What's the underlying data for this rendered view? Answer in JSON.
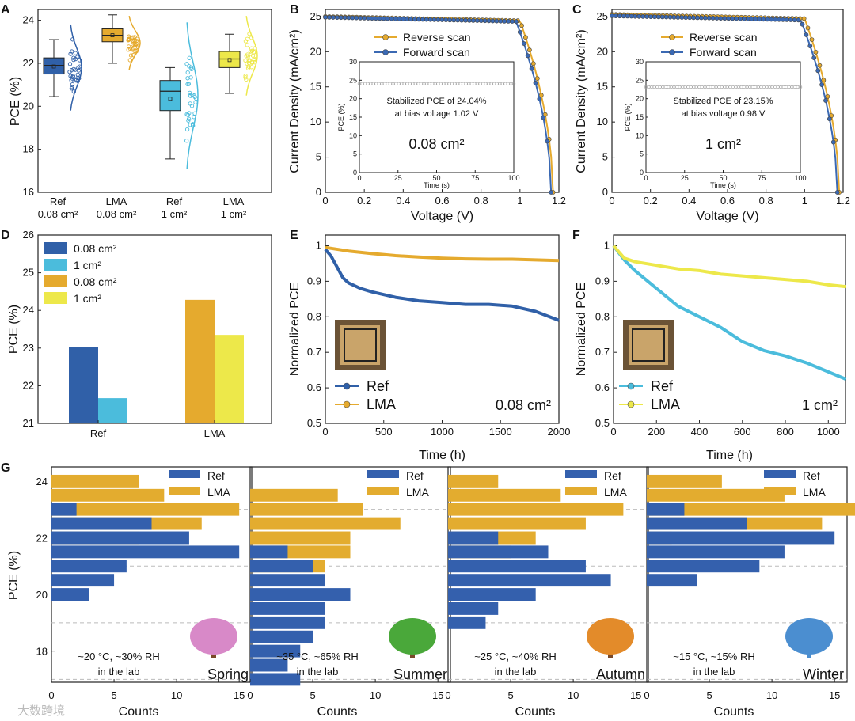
{
  "watermark": "大数跨境",
  "colors": {
    "ref_008": "#3060a8",
    "ref_1": "#4bbcdc",
    "lma_008": "#e5aa2e",
    "lma_1": "#ede84a",
    "reverse": "#e5aa2e",
    "forward": "#3b69b3",
    "stab": "#a9a9a9",
    "g_ref": "#3460ad",
    "g_lma": "#e3ac2f",
    "dash": "#bbbbbb"
  },
  "chart_data": [
    {
      "panel": "A",
      "type": "box",
      "ylabel": "PCE (%)",
      "ylim": [
        16,
        24.5
      ],
      "yticks": [
        16,
        18,
        20,
        22,
        24
      ],
      "categories": [
        {
          "line1": "Ref",
          "line2": "0.08 cm²",
          "color_key": "ref_008",
          "min": 20.45,
          "q1": 21.5,
          "median": 21.9,
          "q3": 22.25,
          "max": 23.1,
          "mean": 21.85,
          "pts_min": 19.8,
          "pts_max": 23.8
        },
        {
          "line1": "LMA",
          "line2": "0.08 cm²",
          "color_key": "lma_008",
          "min": 22.0,
          "q1": 23.0,
          "median": 23.3,
          "q3": 23.6,
          "max": 24.25,
          "mean": 23.3,
          "pts_min": 21.7,
          "pts_max": 24.2
        },
        {
          "line1": "Ref",
          "line2": "1 cm²",
          "color_key": "ref_1",
          "min": 17.55,
          "q1": 19.8,
          "median": 20.7,
          "q3": 21.2,
          "max": 21.8,
          "mean": 20.35,
          "pts_min": 17.1,
          "pts_max": 23.9
        },
        {
          "line1": "LMA",
          "line2": "1 cm²",
          "color_key": "lma_1",
          "min": 20.6,
          "q1": 21.8,
          "median": 22.2,
          "q3": 22.55,
          "max": 23.35,
          "mean": 22.15,
          "pts_min": 20.5,
          "pts_max": 24.2
        }
      ]
    },
    {
      "panel": "B",
      "type": "line",
      "xlabel": "Voltage (V)",
      "ylabel": "Current Density (mA/cm²)",
      "xlim": [
        0,
        1.2
      ],
      "ylim": [
        0,
        26
      ],
      "xticks": [
        "0",
        "0.2",
        "0.4",
        "0.6",
        "0.8",
        "1",
        "1.2"
      ],
      "yticks": [
        "0",
        "5",
        "10",
        "15",
        "20",
        "25"
      ],
      "series": [
        {
          "name": "Reverse scan",
          "jsc": 25.0,
          "voc": 1.17,
          "knee": 1.0
        },
        {
          "name": "Forward scan",
          "jsc": 24.9,
          "voc": 1.16,
          "knee": 0.98
        }
      ],
      "inset": {
        "ylabel": "PCE (%)",
        "xlabel": "Time (s)",
        "xticks": [
          "0",
          "25",
          "50",
          "75",
          "100"
        ],
        "yticks": [
          "0",
          "5",
          "10",
          "15",
          "20",
          "25",
          "30"
        ],
        "value": 24.04,
        "note1": "Stabilized PCE of 24.04%",
        "note2": "at bias voltage 1.02 V",
        "area": "0.08 cm²"
      }
    },
    {
      "panel": "C",
      "type": "line",
      "xlabel": "Voltage (V)",
      "ylabel": "Current Density (mA/cm²)",
      "xlim": [
        0,
        1.2
      ],
      "ylim": [
        0,
        26
      ],
      "xticks": [
        "0",
        "0.2",
        "0.4",
        "0.6",
        "0.8",
        "1",
        "1.2"
      ],
      "yticks": [
        "0",
        "5",
        "10",
        "15",
        "20",
        "25"
      ],
      "series": [
        {
          "name": "Reverse scan",
          "jsc": 25.3,
          "voc": 1.18,
          "knee": 1.0
        },
        {
          "name": "Forward scan",
          "jsc": 25.1,
          "voc": 1.17,
          "knee": 0.98
        }
      ],
      "inset": {
        "ylabel": "PCE (%)",
        "xlabel": "Time (s)",
        "xticks": [
          "0",
          "25",
          "50",
          "75",
          "100"
        ],
        "yticks": [
          "0",
          "5",
          "10",
          "15",
          "20",
          "25",
          "30"
        ],
        "value": 23.15,
        "note1": "Stabilized PCE of 23.15%",
        "note2": "at bias voltage 0.98 V",
        "area": "1 cm²"
      }
    },
    {
      "panel": "D",
      "type": "bar",
      "ylabel": "PCE (%)",
      "ylim": [
        21,
        26
      ],
      "yticks": [
        "21",
        "22",
        "23",
        "24",
        "25",
        "26"
      ],
      "categories": [
        "Ref",
        "LMA"
      ],
      "series": [
        {
          "name": "0.08 cm²",
          "values": [
            23.02,
            null
          ],
          "color_key": "ref_008"
        },
        {
          "name": "1 cm²",
          "values": [
            21.67,
            null
          ],
          "color_key": "ref_1"
        },
        {
          "name": "0.08 cm²",
          "values": [
            null,
            24.28
          ],
          "color_key": "lma_008"
        },
        {
          "name": "1 cm²",
          "values": [
            null,
            23.35
          ],
          "color_key": "lma_1"
        }
      ]
    },
    {
      "panel": "E",
      "type": "line",
      "xlabel": "Time (h)",
      "ylabel": "Normalized PCE",
      "xlim": [
        0,
        2000
      ],
      "ylim": [
        0.5,
        1.03
      ],
      "xticks": [
        "0",
        "500",
        "1000",
        "1500",
        "2000"
      ],
      "yticks": [
        "0.5",
        "0.6",
        "0.7",
        "0.8",
        "0.9",
        "1"
      ],
      "note": "0.08 cm²",
      "series": [
        {
          "name": "Ref",
          "x": [
            0,
            50,
            100,
            150,
            200,
            300,
            400,
            600,
            800,
            1000,
            1200,
            1400,
            1600,
            1800,
            2000
          ],
          "y": [
            0.99,
            0.97,
            0.94,
            0.91,
            0.895,
            0.88,
            0.87,
            0.855,
            0.845,
            0.84,
            0.835,
            0.835,
            0.83,
            0.815,
            0.79
          ],
          "color_key": "ref_008"
        },
        {
          "name": "LMA",
          "x": [
            0,
            200,
            400,
            600,
            800,
            1000,
            1200,
            1400,
            1600,
            1800,
            2000
          ],
          "y": [
            0.995,
            0.985,
            0.978,
            0.972,
            0.968,
            0.965,
            0.963,
            0.962,
            0.962,
            0.96,
            0.958
          ],
          "color_key": "lma_008"
        }
      ]
    },
    {
      "panel": "F",
      "type": "line",
      "xlabel": "Time (h)",
      "ylabel": "Normalized PCE",
      "xlim": [
        0,
        1080
      ],
      "ylim": [
        0.5,
        1.03
      ],
      "xticks": [
        "0",
        "200",
        "400",
        "600",
        "800",
        "1000"
      ],
      "yticks": [
        "0.5",
        "0.6",
        "0.7",
        "0.8",
        "0.9",
        "1"
      ],
      "note": "1 cm²",
      "series": [
        {
          "name": "Ref",
          "x": [
            0,
            50,
            100,
            200,
            300,
            400,
            500,
            600,
            700,
            800,
            900,
            1000,
            1080
          ],
          "y": [
            1.0,
            0.96,
            0.93,
            0.88,
            0.83,
            0.8,
            0.77,
            0.73,
            0.705,
            0.69,
            0.67,
            0.645,
            0.625
          ],
          "color_key": "ref_1"
        },
        {
          "name": "LMA",
          "x": [
            0,
            50,
            100,
            200,
            300,
            400,
            500,
            600,
            700,
            800,
            900,
            1000,
            1080
          ],
          "y": [
            1.0,
            0.965,
            0.955,
            0.945,
            0.935,
            0.93,
            0.92,
            0.915,
            0.91,
            0.905,
            0.9,
            0.89,
            0.885
          ],
          "color_key": "lma_1"
        }
      ]
    },
    {
      "panel": "G",
      "type": "bar",
      "orientation": "horizontal",
      "ylabel": "PCE (%)",
      "ylim": [
        16.9,
        24.5
      ],
      "yticks": [
        "18",
        "20",
        "22",
        "24"
      ],
      "xlabel": "Counts",
      "xlim": [
        0,
        16
      ],
      "xticks": [
        "0",
        "5",
        "10",
        "15"
      ],
      "subpanels": [
        {
          "season": "Spring",
          "condition": "~20 °C, ~30% RH",
          "place": "in the lab",
          "dashes": [
            23.0,
            21.0,
            19.0,
            17.0
          ],
          "lma": [
            [
              24.0,
              7
            ],
            [
              23.5,
              9
            ],
            [
              23.0,
              15
            ],
            [
              22.5,
              12
            ],
            [
              22.0,
              7
            ]
          ],
          "ref": [
            [
              23.0,
              2
            ],
            [
              22.5,
              8
            ],
            [
              22.0,
              11
            ],
            [
              21.5,
              15
            ],
            [
              21.0,
              6
            ],
            [
              20.5,
              5
            ],
            [
              20.0,
              3
            ]
          ]
        },
        {
          "season": "Summer",
          "condition": "~35 °C, ~65% RH",
          "place": "in the lab",
          "dashes": [
            23.0,
            21.0,
            19.0,
            17.0
          ],
          "lma": [
            [
              23.5,
              7
            ],
            [
              23.0,
              9
            ],
            [
              22.5,
              12
            ],
            [
              22.0,
              8
            ],
            [
              21.5,
              8
            ],
            [
              21.0,
              6
            ]
          ],
          "ref": [
            [
              21.5,
              3
            ],
            [
              21.0,
              5
            ],
            [
              20.5,
              6
            ],
            [
              20.0,
              8
            ],
            [
              19.5,
              6
            ],
            [
              19.0,
              6
            ],
            [
              18.5,
              5
            ],
            [
              18.0,
              4
            ],
            [
              17.5,
              3
            ],
            [
              17.0,
              4
            ]
          ]
        },
        {
          "season": "Autumn",
          "condition": "~25 °C, ~40% RH",
          "place": "in the lab",
          "dashes": [
            23.0,
            21.0,
            19.0,
            17.0
          ],
          "lma": [
            [
              24.0,
              4
            ],
            [
              23.5,
              9
            ],
            [
              23.0,
              14
            ],
            [
              22.5,
              11
            ],
            [
              22.0,
              7
            ],
            [
              21.5,
              5
            ]
          ],
          "ref": [
            [
              22.0,
              4
            ],
            [
              21.5,
              8
            ],
            [
              21.0,
              11
            ],
            [
              20.5,
              13
            ],
            [
              20.0,
              7
            ],
            [
              19.5,
              4
            ],
            [
              19.0,
              3
            ]
          ]
        },
        {
          "season": "Winter",
          "condition": "~15 °C, ~15% RH",
          "place": "in the lab",
          "dashes": [
            23.0,
            21.0,
            19.0,
            17.0
          ],
          "lma": [
            [
              24.0,
              6
            ],
            [
              23.5,
              11
            ],
            [
              23.0,
              17
            ],
            [
              22.5,
              14
            ],
            [
              22.0,
              2
            ]
          ],
          "ref": [
            [
              23.0,
              3
            ],
            [
              22.5,
              8
            ],
            [
              22.0,
              15
            ],
            [
              21.5,
              11
            ],
            [
              21.0,
              9
            ],
            [
              20.5,
              4
            ]
          ]
        }
      ],
      "legend": [
        "Ref",
        "LMA"
      ]
    }
  ]
}
